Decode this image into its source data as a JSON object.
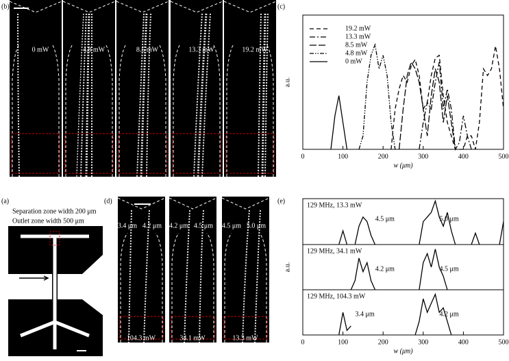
{
  "panels": {
    "b": {
      "letter": "(b)",
      "labels": [
        "0 mW",
        "4.8 mW",
        "8.5 mW",
        "13.3 mW",
        "19.2 mW"
      ]
    },
    "c": {
      "letter": "(c)"
    },
    "a": {
      "letter": "(a)",
      "lines": [
        "Separation zone width 200 μm",
        "Outlet zone width 500 μm"
      ]
    },
    "d": {
      "letter": "(d)",
      "top_labels": [
        "3.4 μm",
        "4.2 μm",
        "4.2 μm",
        "4.5 μm",
        "4.5 μm",
        "5.0 μm"
      ],
      "bottom_labels": [
        "104.3 mW",
        "34.1 mW",
        "13.3 mW"
      ]
    },
    "e": {
      "letter": "(e)"
    }
  },
  "chart_data": [
    {
      "type": "line",
      "xlabel": "w (μm)",
      "ylabel": "a.u.",
      "legend": "upper left",
      "xlim": [
        0,
        500
      ],
      "ylim": [
        0,
        1
      ],
      "xticks": [
        0,
        100,
        200,
        300,
        400,
        500
      ],
      "x": [
        70,
        80,
        90,
        100,
        110,
        120,
        130,
        140,
        150,
        160,
        170,
        180,
        190,
        200,
        210,
        220,
        230,
        240,
        250,
        260,
        270,
        280,
        290,
        300,
        310,
        320,
        330,
        340,
        350,
        360,
        370,
        380,
        390,
        400,
        410,
        420,
        430,
        440,
        450,
        460,
        470,
        480,
        490,
        500
      ],
      "series": [
        {
          "name": "19.2 mW",
          "color": "#000000",
          "dash": "6,4",
          "values": [
            null,
            null,
            null,
            null,
            null,
            null,
            null,
            null,
            null,
            null,
            null,
            null,
            null,
            null,
            null,
            0,
            0.3,
            0.45,
            0.55,
            0.5,
            0.62,
            0.67,
            0.55,
            0.3,
            0.35,
            0.55,
            0.68,
            0.7,
            0.4,
            0.2,
            0.1,
            0,
            0,
            0,
            0.1,
            0.1,
            0,
            0.2,
            0.6,
            0.55,
            0.6,
            0.77,
            0.6,
            0.3
          ]
        },
        {
          "name": "13.3 mW",
          "color": "#000000",
          "dash": "8,3,2,3",
          "values": [
            null,
            null,
            null,
            null,
            null,
            null,
            null,
            null,
            null,
            null,
            null,
            null,
            null,
            null,
            null,
            null,
            null,
            null,
            null,
            null,
            null,
            null,
            0,
            0.2,
            0.35,
            0.3,
            0.5,
            0.65,
            0.3,
            0.45,
            0.3,
            0,
            0.05,
            0.25,
            0.1,
            0,
            null,
            null,
            null,
            null,
            null,
            null,
            null,
            null
          ]
        },
        {
          "name": "8.5 mW",
          "color": "#000000",
          "dash": "10,3",
          "values": [
            null,
            null,
            null,
            null,
            null,
            null,
            null,
            null,
            null,
            null,
            null,
            null,
            null,
            null,
            null,
            null,
            null,
            0,
            0.3,
            0.55,
            0.65,
            0.6,
            0.5,
            0.3,
            0.1,
            0.4,
            0.6,
            0.5,
            0.2,
            0.4,
            0.2,
            0,
            null,
            null,
            null,
            null,
            null,
            null,
            null,
            null,
            null,
            null,
            null,
            null
          ]
        },
        {
          "name": "4.8 mW",
          "color": "#000000",
          "dash": "6,2,1.5,2,1.5,2",
          "values": [
            null,
            null,
            null,
            null,
            null,
            null,
            null,
            0,
            0.1,
            0.5,
            0.7,
            0.78,
            0.6,
            0.7,
            0.55,
            0.2,
            0,
            null,
            null,
            null,
            null,
            null,
            null,
            null,
            null,
            null,
            null,
            null,
            null,
            null,
            null,
            null,
            null,
            null,
            null,
            null,
            null,
            null,
            null,
            null,
            null,
            null,
            null,
            null
          ]
        },
        {
          "name": "0 mW",
          "color": "#000000",
          "dash": "none",
          "values": [
            0,
            0.25,
            0.4,
            0.2,
            0,
            null,
            null,
            null,
            null,
            null,
            null,
            null,
            null,
            null,
            null,
            null,
            null,
            null,
            null,
            null,
            null,
            null,
            null,
            null,
            null,
            null,
            null,
            null,
            null,
            null,
            null,
            null,
            null,
            null,
            null,
            null,
            null,
            null,
            null,
            null,
            null,
            null,
            null,
            null
          ]
        }
      ]
    },
    {
      "type": "line",
      "label": "129 MHz, 13.3 mW",
      "annotations": [
        "4.5 μm",
        "5.0 μm"
      ],
      "xlim": [
        0,
        500
      ],
      "ylim": [
        0,
        1
      ],
      "color": "#000000",
      "x": [
        90,
        100,
        110,
        120,
        130,
        140,
        150,
        160,
        170,
        180,
        190,
        290,
        300,
        310,
        320,
        330,
        340,
        350,
        360,
        370,
        380,
        400,
        420,
        430,
        440,
        460,
        490,
        500
      ],
      "values": [
        0,
        0.3,
        0,
        null,
        0,
        0.4,
        0.6,
        0.5,
        0.2,
        0,
        null,
        0,
        0.5,
        0.6,
        0.7,
        0.95,
        0.6,
        0.4,
        0.7,
        0.3,
        0,
        null,
        0,
        0.25,
        0,
        null,
        0,
        0.5
      ]
    },
    {
      "type": "line",
      "label": "129 MHz, 34.1 mW",
      "annotations": [
        "4.2 μm",
        "4.5 μm"
      ],
      "ylabel": "a.u.",
      "xlim": [
        0,
        500
      ],
      "ylim": [
        0,
        1
      ],
      "color": "#000000",
      "x": [
        120,
        130,
        140,
        150,
        160,
        170,
        180,
        200,
        290,
        300,
        310,
        320,
        330,
        340,
        350,
        360
      ],
      "values": [
        0,
        0.2,
        0.7,
        0.4,
        0.6,
        0.2,
        0,
        null,
        0,
        0.6,
        0.8,
        0.5,
        0.9,
        0.5,
        0.3,
        0
      ]
    },
    {
      "type": "line",
      "label": "129 MHz, 104.3 mW",
      "annotations": [
        "3.4 μm",
        "4.2 μm"
      ],
      "xlabel": "w (μm)",
      "xlim": [
        0,
        500
      ],
      "ylim": [
        0,
        1
      ],
      "color": "#000000",
      "xticks": [
        0,
        100,
        200,
        300,
        400,
        500
      ],
      "x": [
        90,
        100,
        110,
        120,
        200,
        280,
        290,
        300,
        310,
        320,
        330,
        340,
        350,
        360,
        370
      ],
      "values": [
        0,
        0.5,
        0.1,
        0.2,
        null,
        0,
        0.3,
        0.8,
        0.5,
        0.7,
        0.9,
        0.5,
        0.6,
        0.3,
        0
      ]
    }
  ]
}
